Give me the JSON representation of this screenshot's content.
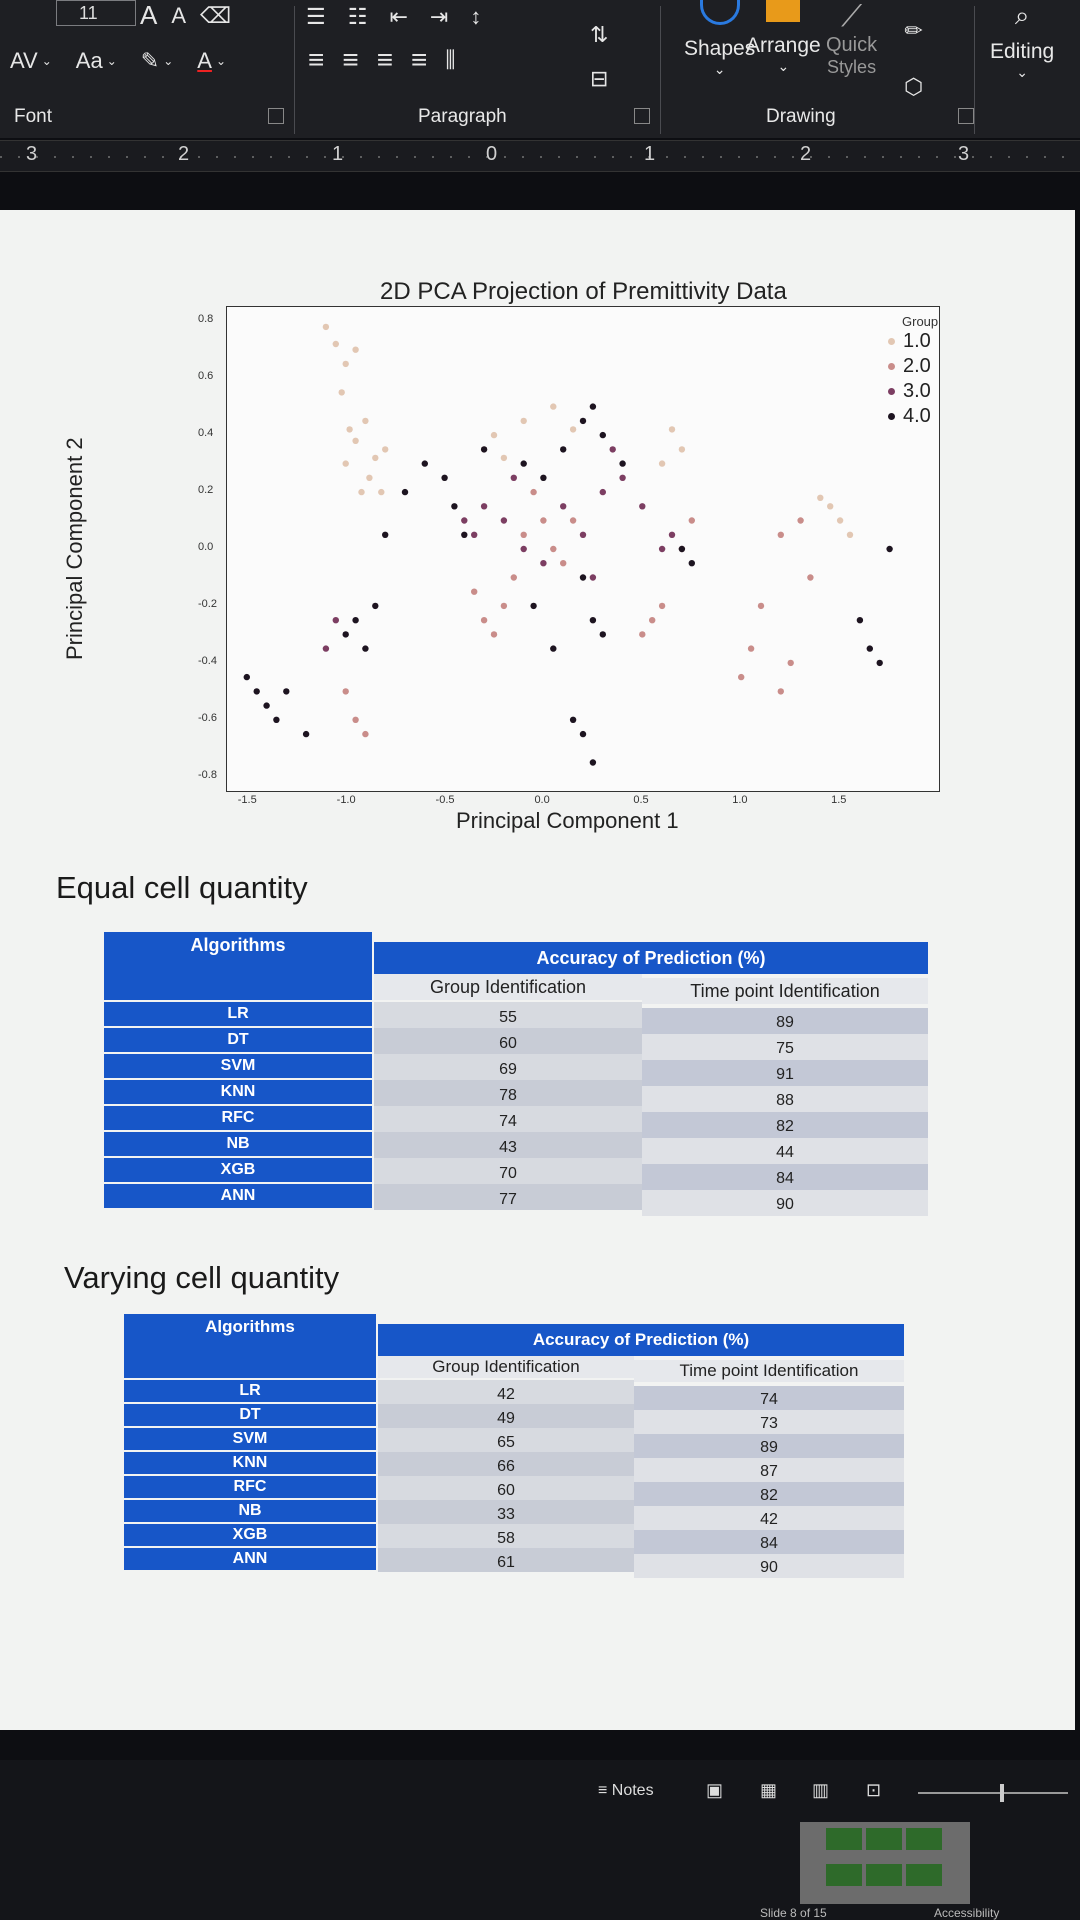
{
  "ribbon": {
    "font_size": "11",
    "grow_font": "A",
    "shrink_font": "A",
    "char_spacing": "AV",
    "change_case": "Aa",
    "font_color": "A",
    "shapes_label": "Shapes",
    "arrange_label": "Arrange",
    "quick_styles_line1": "Quick",
    "quick_styles_line2": "Styles",
    "editing_label": "Editing",
    "groups": {
      "font": "Font",
      "paragraph": "Paragraph",
      "drawing": "Drawing"
    }
  },
  "ruler": {
    "marks": [
      "3",
      "2",
      "1",
      "0",
      "1",
      "2",
      "3"
    ]
  },
  "slide": {
    "chart_title": "2D PCA Projection of Premittivity Data",
    "heading_equal": "Equal cell quantity",
    "heading_varying": "Varying cell quantity",
    "table_headers": {
      "algorithms": "Algorithms",
      "accuracy": "Accuracy of Prediction (%)",
      "group_id": "Group Identification",
      "time_id": "Time point Identification"
    },
    "equal_table": [
      {
        "alg": "LR",
        "group": "55",
        "time": "89"
      },
      {
        "alg": "DT",
        "group": "60",
        "time": "75"
      },
      {
        "alg": "SVM",
        "group": "69",
        "time": "91"
      },
      {
        "alg": "KNN",
        "group": "78",
        "time": "88"
      },
      {
        "alg": "RFC",
        "group": "74",
        "time": "82"
      },
      {
        "alg": "NB",
        "group": "43",
        "time": "44"
      },
      {
        "alg": "XGB",
        "group": "70",
        "time": "84"
      },
      {
        "alg": "ANN",
        "group": "77",
        "time": "90"
      }
    ],
    "varying_table": [
      {
        "alg": "LR",
        "group": "42",
        "time": "74"
      },
      {
        "alg": "DT",
        "group": "49",
        "time": "73"
      },
      {
        "alg": "SVM",
        "group": "65",
        "time": "89"
      },
      {
        "alg": "KNN",
        "group": "66",
        "time": "87"
      },
      {
        "alg": "RFC",
        "group": "60",
        "time": "82"
      },
      {
        "alg": "NB",
        "group": "33",
        "time": "42"
      },
      {
        "alg": "XGB",
        "group": "58",
        "time": "84"
      },
      {
        "alg": "ANN",
        "group": "61",
        "time": "90"
      }
    ]
  },
  "chart_data": {
    "type": "scatter",
    "title": "2D PCA Projection of Premittivity Data",
    "xlabel": "Principal Component 1",
    "ylabel": "Principal Component 2",
    "xlim": [
      -1.6,
      2.0
    ],
    "ylim": [
      -0.85,
      0.85
    ],
    "x_ticks": [
      "-1.5",
      "-1.0",
      "-0.5",
      "0.0",
      "0.5",
      "1.0",
      "1.5"
    ],
    "y_ticks": [
      "0.8",
      "0.6",
      "0.4",
      "0.2",
      "0.0",
      "-0.2",
      "-0.4",
      "-0.6",
      "-0.8"
    ],
    "legend_title": "Group",
    "legend_position": "top-right",
    "series": [
      {
        "name": "1.0",
        "color": "#e2c7b3",
        "points": [
          [
            -1.05,
            0.72
          ],
          [
            -1.0,
            0.65
          ],
          [
            -0.95,
            0.7
          ],
          [
            -1.02,
            0.55
          ],
          [
            -0.9,
            0.45
          ],
          [
            -0.95,
            0.38
          ],
          [
            -0.85,
            0.32
          ],
          [
            -1.0,
            0.3
          ],
          [
            -0.88,
            0.25
          ],
          [
            -0.92,
            0.2
          ],
          [
            -0.8,
            0.35
          ],
          [
            -0.98,
            0.42
          ],
          [
            -0.3,
            0.35
          ],
          [
            -0.25,
            0.4
          ],
          [
            -0.2,
            0.32
          ],
          [
            -0.1,
            0.45
          ],
          [
            0.05,
            0.5
          ],
          [
            0.15,
            0.42
          ],
          [
            0.65,
            0.42
          ],
          [
            0.7,
            0.35
          ],
          [
            0.6,
            0.3
          ],
          [
            1.4,
            0.18
          ],
          [
            1.5,
            0.1
          ],
          [
            1.55,
            0.05
          ],
          [
            1.45,
            0.15
          ],
          [
            -1.1,
            0.78
          ],
          [
            -0.82,
            0.2
          ]
        ]
      },
      {
        "name": "2.0",
        "color": "#c98d8a",
        "points": [
          [
            -1.0,
            -0.5
          ],
          [
            -0.95,
            -0.6
          ],
          [
            -0.9,
            -0.65
          ],
          [
            -0.35,
            -0.15
          ],
          [
            -0.3,
            -0.25
          ],
          [
            -0.25,
            -0.3
          ],
          [
            -0.2,
            -0.2
          ],
          [
            -0.15,
            -0.1
          ],
          [
            -0.1,
            0.05
          ],
          [
            0.0,
            0.1
          ],
          [
            0.05,
            0.0
          ],
          [
            0.1,
            -0.05
          ],
          [
            0.15,
            0.1
          ],
          [
            0.5,
            -0.3
          ],
          [
            0.55,
            -0.25
          ],
          [
            0.6,
            -0.2
          ],
          [
            0.7,
            0.0
          ],
          [
            0.75,
            0.1
          ],
          [
            1.0,
            -0.45
          ],
          [
            1.05,
            -0.35
          ],
          [
            1.1,
            -0.2
          ],
          [
            1.2,
            0.05
          ],
          [
            1.3,
            0.1
          ],
          [
            1.35,
            -0.1
          ],
          [
            1.25,
            -0.4
          ],
          [
            1.2,
            -0.5
          ],
          [
            -0.05,
            0.2
          ]
        ]
      },
      {
        "name": "3.0",
        "color": "#7c3e62",
        "points": [
          [
            -0.4,
            0.1
          ],
          [
            -0.35,
            0.05
          ],
          [
            -0.3,
            0.15
          ],
          [
            -0.2,
            0.1
          ],
          [
            -0.1,
            0.0
          ],
          [
            0.0,
            -0.05
          ],
          [
            0.1,
            0.15
          ],
          [
            0.2,
            0.05
          ],
          [
            0.25,
            -0.1
          ],
          [
            0.3,
            0.2
          ],
          [
            0.4,
            0.25
          ],
          [
            0.5,
            0.15
          ],
          [
            -1.1,
            -0.35
          ],
          [
            -1.05,
            -0.25
          ],
          [
            0.6,
            0.0
          ],
          [
            0.65,
            0.05
          ],
          [
            -0.15,
            0.25
          ],
          [
            0.35,
            0.35
          ]
        ]
      },
      {
        "name": "4.0",
        "color": "#1d1420",
        "points": [
          [
            -1.5,
            -0.45
          ],
          [
            -1.45,
            -0.5
          ],
          [
            -1.4,
            -0.55
          ],
          [
            -1.35,
            -0.6
          ],
          [
            -1.2,
            -0.65
          ],
          [
            -1.0,
            -0.3
          ],
          [
            -0.95,
            -0.25
          ],
          [
            -0.9,
            -0.35
          ],
          [
            -0.85,
            -0.2
          ],
          [
            -0.8,
            0.05
          ],
          [
            -0.7,
            0.2
          ],
          [
            -0.6,
            0.3
          ],
          [
            -0.5,
            0.25
          ],
          [
            -0.45,
            0.15
          ],
          [
            -0.4,
            0.05
          ],
          [
            -0.3,
            0.35
          ],
          [
            -0.1,
            0.3
          ],
          [
            0.0,
            0.25
          ],
          [
            0.1,
            0.35
          ],
          [
            0.2,
            0.45
          ],
          [
            0.25,
            0.5
          ],
          [
            0.3,
            0.4
          ],
          [
            0.4,
            0.3
          ],
          [
            0.2,
            -0.1
          ],
          [
            0.25,
            -0.25
          ],
          [
            0.3,
            -0.3
          ],
          [
            0.15,
            -0.6
          ],
          [
            0.2,
            -0.65
          ],
          [
            0.25,
            -0.75
          ],
          [
            0.7,
            0.0
          ],
          [
            0.75,
            -0.05
          ],
          [
            1.6,
            -0.25
          ],
          [
            1.65,
            -0.35
          ],
          [
            1.7,
            -0.4
          ],
          [
            1.75,
            0.0
          ],
          [
            -1.3,
            -0.5
          ],
          [
            -0.05,
            -0.2
          ],
          [
            0.05,
            -0.35
          ]
        ]
      }
    ]
  },
  "status": {
    "notes_label": "Notes",
    "slide_label": "Slide 8 of 15",
    "accessibility_label": "Accessibility"
  }
}
